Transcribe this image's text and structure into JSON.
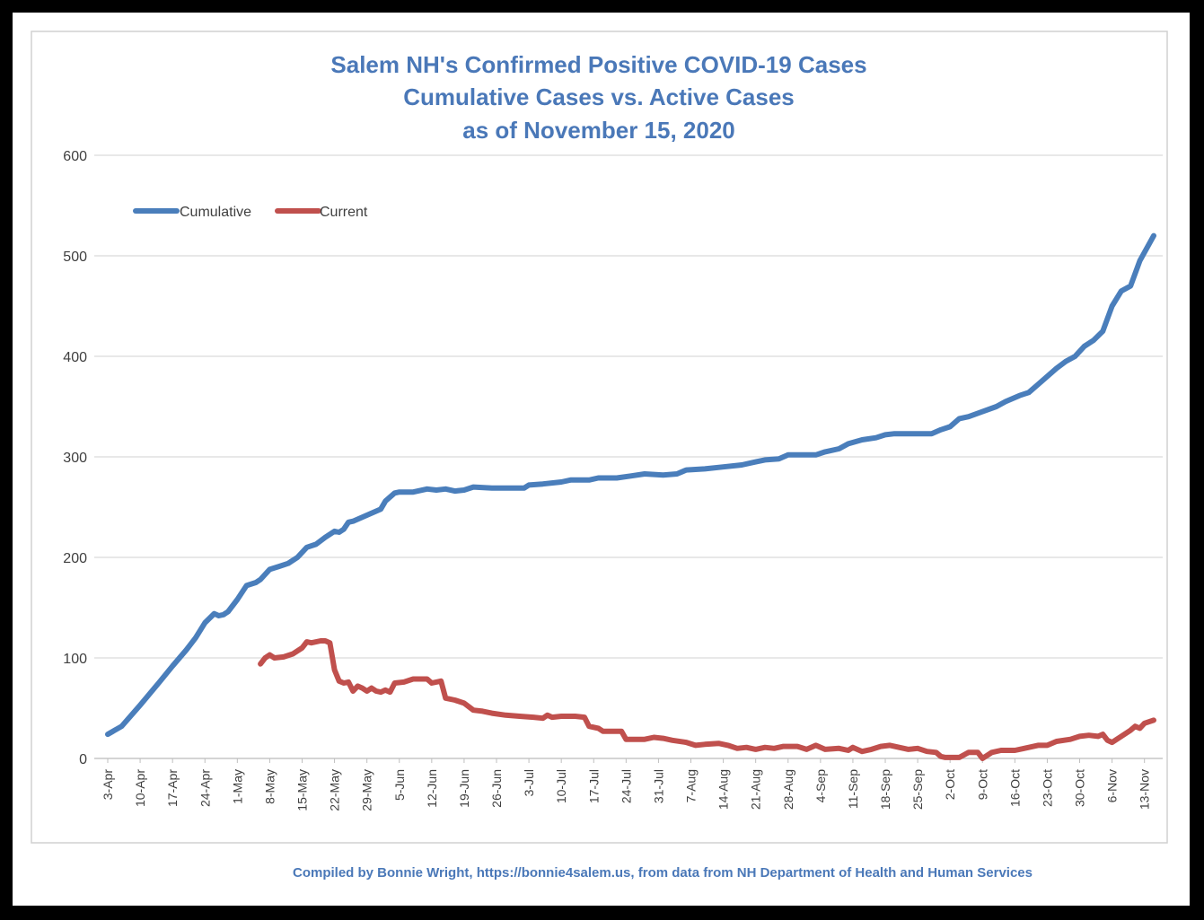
{
  "chart_data": {
    "type": "line",
    "title": [
      "Salem NH's Confirmed Positive COVID-19 Cases",
      "Cumulative Cases vs. Active Cases",
      "as of November 15, 2020"
    ],
    "credit": "Compiled by Bonnie Wright, https://bonnie4salem.us, from data from NH Department of Health and Human Services",
    "xlabel": "",
    "ylabel": "",
    "ylim": [
      0,
      600
    ],
    "yticks": [
      0,
      100,
      200,
      300,
      400,
      500,
      600
    ],
    "x_range": [
      "2020-04-03",
      "2020-11-15"
    ],
    "xticks": [
      "3-Apr",
      "10-Apr",
      "17-Apr",
      "24-Apr",
      "1-May",
      "8-May",
      "15-May",
      "22-May",
      "29-May",
      "5-Jun",
      "12-Jun",
      "19-Jun",
      "26-Jun",
      "3-Jul",
      "10-Jul",
      "17-Jul",
      "24-Jul",
      "31-Jul",
      "7-Aug",
      "14-Aug",
      "21-Aug",
      "28-Aug",
      "4-Sep",
      "11-Sep",
      "18-Sep",
      "25-Sep",
      "2-Oct",
      "9-Oct",
      "16-Oct",
      "23-Oct",
      "30-Oct",
      "6-Nov",
      "13-Nov"
    ],
    "grid": "horizontal",
    "legend_position": "top-left",
    "series": [
      {
        "name": "Cumulative",
        "color": "#4a7ebb",
        "points": [
          [
            "2020-04-03",
            24
          ],
          [
            "2020-04-06",
            32
          ],
          [
            "2020-04-10",
            53
          ],
          [
            "2020-04-14",
            75
          ],
          [
            "2020-04-17",
            92
          ],
          [
            "2020-04-20",
            108
          ],
          [
            "2020-04-22",
            120
          ],
          [
            "2020-04-24",
            135
          ],
          [
            "2020-04-26",
            144
          ],
          [
            "2020-04-27",
            142
          ],
          [
            "2020-04-28",
            143
          ],
          [
            "2020-04-29",
            146
          ],
          [
            "2020-05-01",
            158
          ],
          [
            "2020-05-03",
            172
          ],
          [
            "2020-05-05",
            175
          ],
          [
            "2020-05-06",
            178
          ],
          [
            "2020-05-08",
            188
          ],
          [
            "2020-05-10",
            191
          ],
          [
            "2020-05-12",
            194
          ],
          [
            "2020-05-14",
            200
          ],
          [
            "2020-05-16",
            210
          ],
          [
            "2020-05-18",
            213
          ],
          [
            "2020-05-20",
            220
          ],
          [
            "2020-05-22",
            226
          ],
          [
            "2020-05-23",
            225
          ],
          [
            "2020-05-24",
            228
          ],
          [
            "2020-05-25",
            235
          ],
          [
            "2020-05-26",
            236
          ],
          [
            "2020-05-28",
            240
          ],
          [
            "2020-05-30",
            244
          ],
          [
            "2020-06-01",
            248
          ],
          [
            "2020-06-02",
            256
          ],
          [
            "2020-06-04",
            264
          ],
          [
            "2020-06-05",
            265
          ],
          [
            "2020-06-08",
            265
          ],
          [
            "2020-06-11",
            268
          ],
          [
            "2020-06-13",
            267
          ],
          [
            "2020-06-15",
            268
          ],
          [
            "2020-06-17",
            266
          ],
          [
            "2020-06-19",
            267
          ],
          [
            "2020-06-21",
            270
          ],
          [
            "2020-06-25",
            269
          ],
          [
            "2020-07-02",
            269
          ],
          [
            "2020-07-03",
            272
          ],
          [
            "2020-07-06",
            273
          ],
          [
            "2020-07-10",
            275
          ],
          [
            "2020-07-12",
            277
          ],
          [
            "2020-07-16",
            277
          ],
          [
            "2020-07-18",
            279
          ],
          [
            "2020-07-22",
            279
          ],
          [
            "2020-07-25",
            281
          ],
          [
            "2020-07-28",
            283
          ],
          [
            "2020-08-01",
            282
          ],
          [
            "2020-08-04",
            283
          ],
          [
            "2020-08-06",
            287
          ],
          [
            "2020-08-10",
            288
          ],
          [
            "2020-08-14",
            290
          ],
          [
            "2020-08-18",
            292
          ],
          [
            "2020-08-21",
            295
          ],
          [
            "2020-08-23",
            297
          ],
          [
            "2020-08-26",
            298
          ],
          [
            "2020-08-28",
            302
          ],
          [
            "2020-09-03",
            302
          ],
          [
            "2020-09-05",
            305
          ],
          [
            "2020-09-08",
            308
          ],
          [
            "2020-09-10",
            313
          ],
          [
            "2020-09-13",
            317
          ],
          [
            "2020-09-16",
            319
          ],
          [
            "2020-09-18",
            322
          ],
          [
            "2020-09-20",
            323
          ],
          [
            "2020-09-25",
            323
          ],
          [
            "2020-09-28",
            323
          ],
          [
            "2020-09-30",
            327
          ],
          [
            "2020-10-02",
            330
          ],
          [
            "2020-10-04",
            338
          ],
          [
            "2020-10-06",
            340
          ],
          [
            "2020-10-09",
            345
          ],
          [
            "2020-10-12",
            350
          ],
          [
            "2020-10-14",
            355
          ],
          [
            "2020-10-17",
            361
          ],
          [
            "2020-10-19",
            364
          ],
          [
            "2020-10-21",
            372
          ],
          [
            "2020-10-23",
            380
          ],
          [
            "2020-10-25",
            388
          ],
          [
            "2020-10-27",
            395
          ],
          [
            "2020-10-29",
            400
          ],
          [
            "2020-10-31",
            410
          ],
          [
            "2020-11-02",
            416
          ],
          [
            "2020-11-04",
            425
          ],
          [
            "2020-11-06",
            450
          ],
          [
            "2020-11-08",
            465
          ],
          [
            "2020-11-10",
            470
          ],
          [
            "2020-11-12",
            495
          ],
          [
            "2020-11-15",
            520
          ]
        ]
      },
      {
        "name": "Current",
        "color": "#c0504d",
        "points": [
          [
            "2020-05-06",
            94
          ],
          [
            "2020-05-07",
            100
          ],
          [
            "2020-05-08",
            103
          ],
          [
            "2020-05-09",
            100
          ],
          [
            "2020-05-11",
            101
          ],
          [
            "2020-05-13",
            104
          ],
          [
            "2020-05-15",
            110
          ],
          [
            "2020-05-16",
            116
          ],
          [
            "2020-05-17",
            115
          ],
          [
            "2020-05-19",
            117
          ],
          [
            "2020-05-20",
            117
          ],
          [
            "2020-05-21",
            115
          ],
          [
            "2020-05-22",
            88
          ],
          [
            "2020-05-23",
            77
          ],
          [
            "2020-05-24",
            75
          ],
          [
            "2020-05-25",
            76
          ],
          [
            "2020-05-26",
            67
          ],
          [
            "2020-05-27",
            72
          ],
          [
            "2020-05-28",
            70
          ],
          [
            "2020-05-29",
            67
          ],
          [
            "2020-05-30",
            70
          ],
          [
            "2020-05-31",
            67
          ],
          [
            "2020-06-01",
            66
          ],
          [
            "2020-06-02",
            68
          ],
          [
            "2020-06-03",
            66
          ],
          [
            "2020-06-04",
            75
          ],
          [
            "2020-06-06",
            76
          ],
          [
            "2020-06-08",
            79
          ],
          [
            "2020-06-11",
            79
          ],
          [
            "2020-06-12",
            75
          ],
          [
            "2020-06-14",
            77
          ],
          [
            "2020-06-15",
            60
          ],
          [
            "2020-06-17",
            58
          ],
          [
            "2020-06-19",
            55
          ],
          [
            "2020-06-21",
            48
          ],
          [
            "2020-06-23",
            47
          ],
          [
            "2020-06-25",
            45
          ],
          [
            "2020-06-28",
            43
          ],
          [
            "2020-07-01",
            42
          ],
          [
            "2020-07-04",
            41
          ],
          [
            "2020-07-06",
            40
          ],
          [
            "2020-07-07",
            43
          ],
          [
            "2020-07-08",
            41
          ],
          [
            "2020-07-10",
            42
          ],
          [
            "2020-07-13",
            42
          ],
          [
            "2020-07-15",
            41
          ],
          [
            "2020-07-16",
            32
          ],
          [
            "2020-07-18",
            30
          ],
          [
            "2020-07-19",
            27
          ],
          [
            "2020-07-23",
            27
          ],
          [
            "2020-07-24",
            19
          ],
          [
            "2020-07-28",
            19
          ],
          [
            "2020-07-30",
            21
          ],
          [
            "2020-08-01",
            20
          ],
          [
            "2020-08-03",
            18
          ],
          [
            "2020-08-06",
            16
          ],
          [
            "2020-08-08",
            13
          ],
          [
            "2020-08-10",
            14
          ],
          [
            "2020-08-13",
            15
          ],
          [
            "2020-08-15",
            13
          ],
          [
            "2020-08-17",
            10
          ],
          [
            "2020-08-19",
            11
          ],
          [
            "2020-08-21",
            9
          ],
          [
            "2020-08-23",
            11
          ],
          [
            "2020-08-25",
            10
          ],
          [
            "2020-08-27",
            12
          ],
          [
            "2020-08-30",
            12
          ],
          [
            "2020-09-01",
            9
          ],
          [
            "2020-09-03",
            13
          ],
          [
            "2020-09-05",
            9
          ],
          [
            "2020-09-08",
            10
          ],
          [
            "2020-09-10",
            8
          ],
          [
            "2020-09-11",
            11
          ],
          [
            "2020-09-13",
            7
          ],
          [
            "2020-09-15",
            9
          ],
          [
            "2020-09-17",
            12
          ],
          [
            "2020-09-19",
            13
          ],
          [
            "2020-09-21",
            11
          ],
          [
            "2020-09-23",
            9
          ],
          [
            "2020-09-25",
            10
          ],
          [
            "2020-09-27",
            7
          ],
          [
            "2020-09-29",
            6
          ],
          [
            "2020-09-30",
            2
          ],
          [
            "2020-10-01",
            1
          ],
          [
            "2020-10-02",
            1
          ],
          [
            "2020-10-04",
            1
          ],
          [
            "2020-10-06",
            6
          ],
          [
            "2020-10-08",
            6
          ],
          [
            "2020-10-09",
            0
          ],
          [
            "2020-10-11",
            6
          ],
          [
            "2020-10-13",
            8
          ],
          [
            "2020-10-16",
            8
          ],
          [
            "2020-10-18",
            10
          ],
          [
            "2020-10-21",
            13
          ],
          [
            "2020-10-23",
            13
          ],
          [
            "2020-10-25",
            17
          ],
          [
            "2020-10-28",
            19
          ],
          [
            "2020-10-30",
            22
          ],
          [
            "2020-11-01",
            23
          ],
          [
            "2020-11-03",
            22
          ],
          [
            "2020-11-04",
            24
          ],
          [
            "2020-11-05",
            18
          ],
          [
            "2020-11-06",
            16
          ],
          [
            "2020-11-08",
            22
          ],
          [
            "2020-11-10",
            28
          ],
          [
            "2020-11-11",
            32
          ],
          [
            "2020-11-12",
            30
          ],
          [
            "2020-11-13",
            35
          ],
          [
            "2020-11-15",
            38
          ]
        ]
      }
    ]
  }
}
